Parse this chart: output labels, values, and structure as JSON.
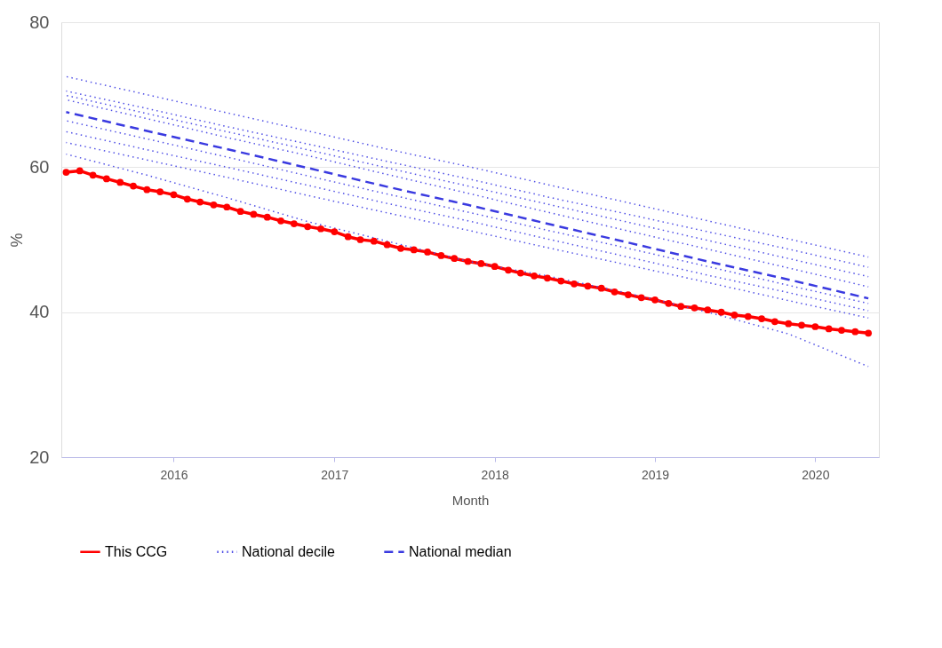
{
  "chart_data": {
    "type": "line",
    "xlabel": "Month",
    "ylabel": "%",
    "xlim": [
      "2015-04-20",
      "2020-05-25"
    ],
    "xticks": [
      "2016",
      "2017",
      "2018",
      "2019",
      "2020"
    ],
    "ylim": [
      20,
      80
    ],
    "yticks": [
      20,
      40,
      60,
      80
    ],
    "grid": "y",
    "legend": "bottom",
    "series": [
      {
        "name": "This CCG",
        "color": "#ff0000",
        "marker": "circle",
        "line_style": "solid",
        "x": [
          "2015-05",
          "2015-06",
          "2015-07",
          "2015-08",
          "2015-09",
          "2015-10",
          "2015-11",
          "2015-12",
          "2016-01",
          "2016-02",
          "2016-03",
          "2016-04",
          "2016-05",
          "2016-06",
          "2016-07",
          "2016-08",
          "2016-09",
          "2016-10",
          "2016-11",
          "2016-12",
          "2017-01",
          "2017-02",
          "2017-03",
          "2017-04",
          "2017-05",
          "2017-06",
          "2017-07",
          "2017-08",
          "2017-09",
          "2017-10",
          "2017-11",
          "2017-12",
          "2018-01",
          "2018-02",
          "2018-03",
          "2018-04",
          "2018-05",
          "2018-06",
          "2018-07",
          "2018-08",
          "2018-09",
          "2018-10",
          "2018-11",
          "2018-12",
          "2019-01",
          "2019-02",
          "2019-03",
          "2019-04",
          "2019-05",
          "2019-06",
          "2019-07",
          "2019-08",
          "2019-09",
          "2019-10",
          "2019-11",
          "2019-12",
          "2020-01",
          "2020-02",
          "2020-03",
          "2020-04",
          "2020-05"
        ],
        "values": [
          59.3,
          59.5,
          58.9,
          58.4,
          57.9,
          57.4,
          56.9,
          56.6,
          56.2,
          55.6,
          55.2,
          54.8,
          54.5,
          53.9,
          53.5,
          53.1,
          52.6,
          52.2,
          51.8,
          51.5,
          51.1,
          50.4,
          50.0,
          49.8,
          49.3,
          48.8,
          48.6,
          48.3,
          47.8,
          47.4,
          47.0,
          46.7,
          46.3,
          45.8,
          45.4,
          45.0,
          44.7,
          44.3,
          43.9,
          43.6,
          43.3,
          42.8,
          42.4,
          42.0,
          41.7,
          41.2,
          40.8,
          40.6,
          40.3,
          40.0,
          39.6,
          39.4,
          39.1,
          38.7,
          38.4,
          38.2,
          38.0,
          37.7,
          37.5,
          37.3,
          37.1
        ]
      },
      {
        "name": "National decile",
        "color": "#4f4fe6",
        "marker": "none",
        "line_style": "dotted",
        "x": [
          "2015-05",
          "2015-11",
          "2016-05",
          "2016-11",
          "2017-05",
          "2017-11",
          "2018-05",
          "2018-11",
          "2019-05",
          "2019-11",
          "2020-05"
        ],
        "values": [
          72.5,
          70.0,
          67.5,
          65.0,
          62.5,
          60.1,
          57.6,
          55.1,
          52.6,
          50.1,
          47.6
        ]
      },
      {
        "color": "#4f4fe6",
        "marker": "none",
        "line_style": "dotted",
        "x": [
          "2015-05",
          "2015-11",
          "2016-05",
          "2016-11",
          "2017-05",
          "2017-11",
          "2018-05",
          "2018-11",
          "2019-05",
          "2019-11",
          "2020-05"
        ],
        "values": [
          70.5,
          68.1,
          65.6,
          63.2,
          60.8,
          58.4,
          55.9,
          53.5,
          51.1,
          48.7,
          46.2
        ]
      },
      {
        "color": "#4f4fe6",
        "marker": "none",
        "line_style": "dotted",
        "x": [
          "2015-05",
          "2015-11",
          "2016-05",
          "2016-11",
          "2017-05",
          "2017-11",
          "2018-05",
          "2018-11",
          "2019-05",
          "2019-11",
          "2020-05"
        ],
        "values": [
          69.9,
          67.4,
          64.9,
          62.4,
          59.9,
          57.4,
          54.9,
          52.4,
          49.9,
          47.4,
          44.9
        ]
      },
      {
        "color": "#4f4fe6",
        "marker": "none",
        "line_style": "dotted",
        "x": [
          "2015-05",
          "2015-11",
          "2016-05",
          "2016-11",
          "2017-05",
          "2017-11",
          "2018-05",
          "2018-11",
          "2019-05",
          "2019-11",
          "2020-05"
        ],
        "values": [
          69.3,
          66.7,
          64.1,
          61.6,
          59.0,
          56.4,
          53.8,
          51.2,
          48.7,
          46.1,
          43.5
        ]
      },
      {
        "color": "#4f4fe6",
        "marker": "none",
        "line_style": "dotted",
        "x": [
          "2015-05",
          "2015-11",
          "2016-05",
          "2016-11",
          "2017-05",
          "2017-11",
          "2018-05",
          "2018-11",
          "2019-05",
          "2019-11",
          "2020-05"
        ],
        "values": [
          66.4,
          63.9,
          61.4,
          58.8,
          56.3,
          53.8,
          51.3,
          48.8,
          46.3,
          43.7,
          41.2
        ]
      },
      {
        "color": "#4f4fe6",
        "marker": "none",
        "line_style": "dotted",
        "x": [
          "2015-05",
          "2015-11",
          "2016-05",
          "2016-11",
          "2017-05",
          "2017-11",
          "2018-05",
          "2018-11",
          "2019-05",
          "2019-11",
          "2020-05"
        ],
        "values": [
          64.9,
          62.4,
          60.0,
          57.5,
          55.0,
          52.6,
          50.1,
          47.6,
          45.1,
          42.7,
          40.2
        ]
      },
      {
        "color": "#4f4fe6",
        "marker": "none",
        "line_style": "dotted",
        "x": [
          "2015-05",
          "2015-11",
          "2016-05",
          "2016-11",
          "2017-05",
          "2017-11",
          "2018-05",
          "2018-11",
          "2019-05",
          "2019-11",
          "2020-05"
        ],
        "values": [
          63.4,
          61.0,
          58.6,
          56.1,
          53.7,
          51.3,
          48.9,
          46.5,
          44.1,
          41.6,
          39.2
        ]
      },
      {
        "color": "#4f4fe6",
        "marker": "none",
        "line_style": "dotted",
        "x": [
          "2015-05",
          "2015-11",
          "2016-05",
          "2016-11",
          "2017-05",
          "2017-11",
          "2018-05",
          "2018-11",
          "2019-05",
          "2019-11",
          "2020-05"
        ],
        "values": [
          61.8,
          58.9,
          55.8,
          52.5,
          49.8,
          47.0,
          45.0,
          42.6,
          40.0,
          37.0,
          32.5
        ]
      },
      {
        "name": "National median",
        "color": "#3a3ae0",
        "marker": "none",
        "line_style": "dashed",
        "x": [
          "2015-05",
          "2015-11",
          "2016-05",
          "2016-11",
          "2017-05",
          "2017-11",
          "2018-05",
          "2018-11",
          "2019-05",
          "2019-11",
          "2020-05"
        ],
        "values": [
          67.6,
          65.0,
          62.5,
          59.9,
          57.3,
          54.8,
          52.2,
          49.6,
          47.0,
          44.5,
          41.9
        ]
      }
    ]
  }
}
